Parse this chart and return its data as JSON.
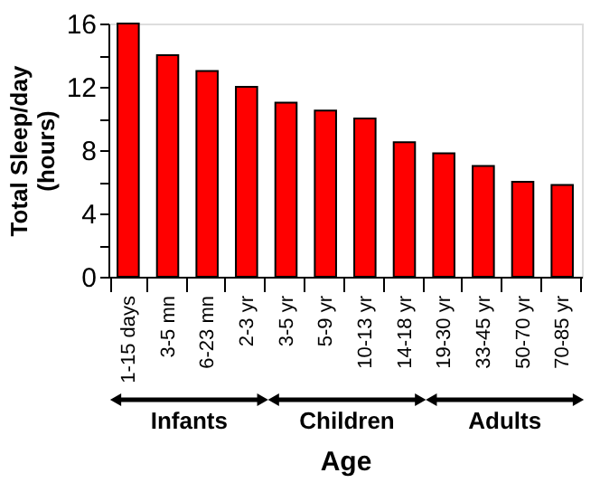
{
  "chart_data": {
    "type": "bar",
    "xlabel": "Age",
    "ylabel": "Total Sleep/day\n(hours)",
    "categories": [
      "1-15 days",
      "3-5 mn",
      "6-23 mn",
      "2-3 yr",
      "3-5 yr",
      "5-9 yr",
      "10-13 yr",
      "14-18 yr",
      "19-30 yr",
      "33-45 yr",
      "50-70 yr",
      "70-85 yr"
    ],
    "values": [
      16,
      14,
      13,
      12,
      11,
      10.5,
      10,
      8.5,
      7.8,
      7,
      6,
      5.8
    ],
    "color": "#ff0000",
    "ylim": [
      0,
      16
    ],
    "yticks": [
      0,
      {
        "value": 2,
        "label": null
      },
      4,
      {
        "value": 6,
        "label": null
      },
      8,
      {
        "value": 10,
        "label": null
      },
      12,
      {
        "value": 14,
        "label": null
      },
      16
    ],
    "annotations": [
      "Infants",
      "Children",
      "Adults"
    ],
    "grid": false
  }
}
